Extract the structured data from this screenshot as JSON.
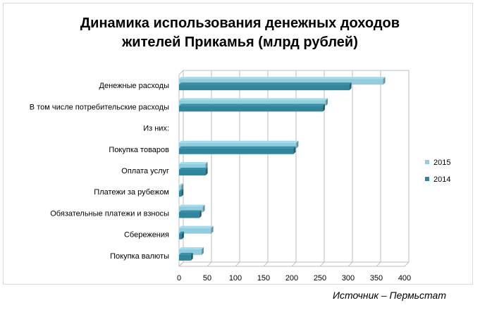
{
  "chart_data": {
    "type": "bar",
    "orientation": "horizontal",
    "title": "Динамика использования денежных доходов жителей Прикамья (млрд рублей)",
    "title_lines": [
      "Динамика использования денежных доходов",
      "жителей Прикамья (млрд рублей)"
    ],
    "categories": [
      "Денежные  расходы",
      "В том числе потребительские  расходы",
      "Из них:",
      "Покупка товаров",
      "Оплата услуг",
      "Платежи за рубежом",
      "Обязательные платежи и взносы",
      "Сбережения",
      "Покупка валюты"
    ],
    "series": [
      {
        "name": "2015",
        "color": "#93cddd",
        "values": [
          362,
          260,
          null,
          208,
          47,
          4,
          42,
          57,
          40
        ]
      },
      {
        "name": "2014",
        "color": "#31859c",
        "values": [
          302,
          255,
          null,
          203,
          47,
          4,
          36,
          5,
          21
        ]
      }
    ],
    "xlim": [
      0,
      400
    ],
    "xticks": [
      0,
      50,
      100,
      150,
      200,
      250,
      300,
      350,
      400
    ],
    "xlabel": "",
    "ylabel": "",
    "grid": true,
    "legend_position": "right",
    "legend_order": [
      "2015",
      "2014"
    ]
  },
  "source_text": "Источник – Пермьстат"
}
